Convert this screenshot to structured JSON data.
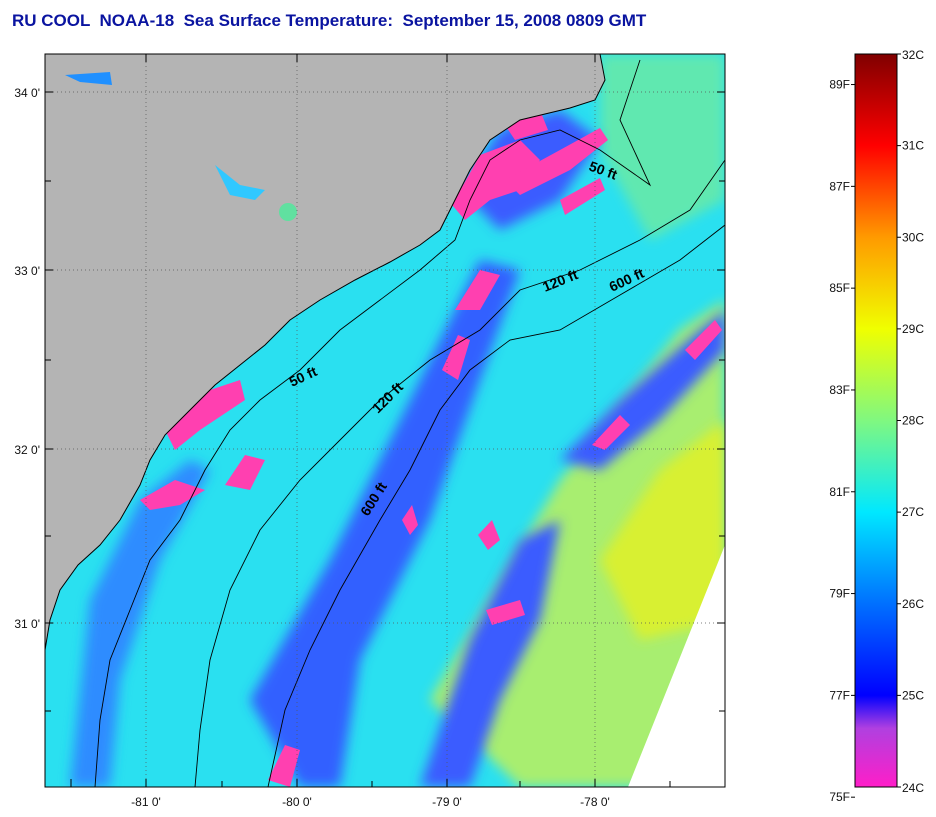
{
  "title": "RU COOL  NOAA-18  Sea Surface Temperature:  September 15, 2008 0809 GMT",
  "map": {
    "lat_labels": [
      "34 0'",
      "33 0'",
      "32 0'",
      "31 0'"
    ],
    "lon_labels": [
      "-81 0'",
      "-80 0'",
      "-79 0'",
      "-78 0'"
    ],
    "contours": [
      {
        "label": "50 ft"
      },
      {
        "label": "50 ft"
      },
      {
        "label": "120 ft"
      },
      {
        "label": "120 ft"
      },
      {
        "label": "600 ft"
      },
      {
        "label": "600 ft"
      }
    ],
    "colors": {
      "land": "#b4b4b4",
      "warm_patch": "#ff3fb0",
      "cool": "#2848ff",
      "mid": "#28d8ff",
      "warm": "#c8f040"
    }
  },
  "colorbar": {
    "celsius_labels": [
      "32C",
      "31C",
      "30C",
      "29C",
      "28C",
      "27C",
      "26C",
      "25C",
      "24C"
    ],
    "fahrenheit_labels": [
      "89F",
      "87F",
      "85F",
      "83F",
      "81F",
      "79F",
      "77F",
      "75F"
    ],
    "range_c": [
      24,
      32
    ]
  }
}
